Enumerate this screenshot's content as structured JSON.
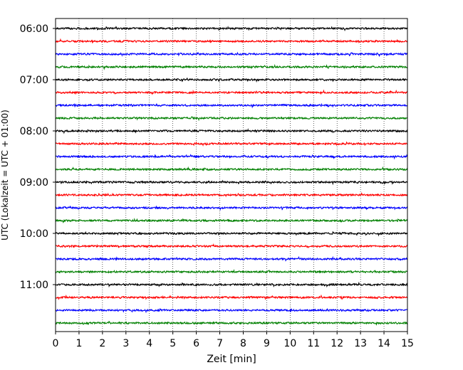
{
  "chart_data": {
    "type": "line",
    "xlabel": "Zeit  [min]",
    "ylabel": "UTC (Lokalzeit = UTC + 01:00)",
    "xlim": [
      0,
      15
    ],
    "x_ticks": [
      "0",
      "1",
      "2",
      "3",
      "4",
      "5",
      "6",
      "7",
      "8",
      "9",
      "10",
      "11",
      "12",
      "13",
      "14",
      "15"
    ],
    "y_ticks": [
      {
        "label": "06:00",
        "trace_index": 0
      },
      {
        "label": "07:00",
        "trace_index": 4
      },
      {
        "label": "08:00",
        "trace_index": 8
      },
      {
        "label": "09:00",
        "trace_index": 12
      },
      {
        "label": "10:00",
        "trace_index": 16
      },
      {
        "label": "11:00",
        "trace_index": 20
      }
    ],
    "grid": "vertical-dotted",
    "trace_count": 24,
    "trace_interval_min": 15,
    "trace_colors": [
      "#000000",
      "#ff0000",
      "#0000ff",
      "#008000"
    ]
  }
}
